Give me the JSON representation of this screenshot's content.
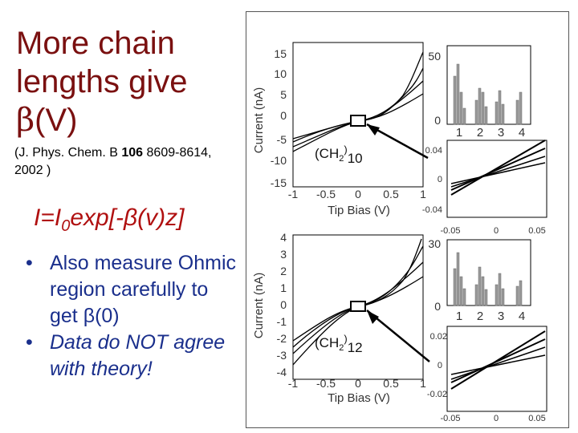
{
  "slide": {
    "title_line1": "More chain",
    "title_line2": "lengths give",
    "title_beta": "β",
    "title_rest": "(V)",
    "citation_pre": "(J. Phys. Chem. B ",
    "citation_vol": "106",
    "citation_post": " 8609-8614, 2002 )",
    "equation": {
      "I": "I=I",
      "sub": "0",
      "rest": "exp[-β(v)z]"
    },
    "bullets": [
      "Also measure Ohmic region carefully to get β(0)",
      "Data do NOT agree with theory!"
    ]
  },
  "figure": {
    "panels": [
      {
        "label_base": "(CH",
        "label_sub1": "2",
        "label_close": ")",
        "label_sub2": "10",
        "iv_xlabel": "Tip Bias (V)",
        "iv_ylabel": "Current (nA)",
        "iv_xticks": [
          "-1",
          "-0.5",
          "0",
          "0.5",
          "1"
        ],
        "iv_yticks": [
          "15",
          "10",
          "5",
          "0",
          "-5",
          "-10",
          "-15"
        ],
        "hist_yticks": [
          "50",
          "0"
        ],
        "hist_xticks": [
          "1",
          "2",
          "3",
          "4"
        ],
        "inset_yticks": [
          "0.04",
          "0",
          "-0.04"
        ],
        "inset_xticks": [
          "-0.05",
          "0",
          "0.05"
        ]
      },
      {
        "label_base": "(CH",
        "label_sub1": "2",
        "label_close": ")",
        "label_sub2": "12",
        "iv_xlabel": "Tip Bias (V)",
        "iv_ylabel": "Current (nA)",
        "iv_xticks": [
          "-1",
          "-0.5",
          "0",
          "0.5",
          "1"
        ],
        "iv_yticks": [
          "4",
          "3",
          "2",
          "1",
          "0",
          "-1",
          "-2",
          "-3",
          "-4"
        ],
        "hist_yticks": [
          "30",
          "0"
        ],
        "hist_xticks": [
          "1",
          "2",
          "3",
          "4"
        ],
        "inset_yticks": [
          "0.02",
          "0",
          "-0.02"
        ],
        "inset_xticks": [
          "-0.05",
          "0",
          "0.05"
        ]
      }
    ]
  },
  "colors": {
    "title": "#7a1010",
    "equation": "#b01010",
    "bullets": "#1a2f8c"
  }
}
